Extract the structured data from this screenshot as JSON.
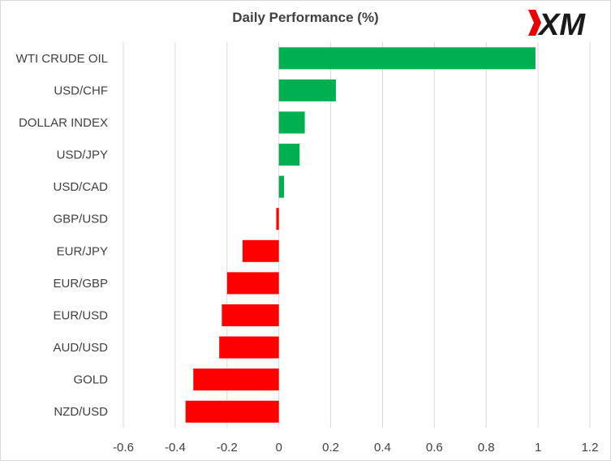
{
  "chart_data": {
    "type": "bar",
    "orientation": "horizontal",
    "title": "Daily Performance  (%)",
    "categories": [
      "WTI CRUDE OIL",
      "USD/CHF",
      "DOLLAR INDEX",
      "USD/JPY",
      "USD/CAD",
      "GBP/USD",
      "EUR/JPY",
      "EUR/GBP",
      "EUR/USD",
      "AUD/USD",
      "GOLD",
      "NZD/USD"
    ],
    "values": [
      0.99,
      0.22,
      0.1,
      0.08,
      0.02,
      -0.01,
      -0.14,
      -0.2,
      -0.22,
      -0.23,
      -0.33,
      -0.36
    ],
    "xlim": [
      -0.6,
      1.2
    ],
    "xticks": [
      "-0.6",
      "-0.4",
      "-0.2",
      "0",
      "0.2",
      "0.4",
      "0.6",
      "0.8",
      "1",
      "1.2"
    ],
    "xlabel": "",
    "ylabel": "",
    "grid": "vertical",
    "legend": "none",
    "colors": {
      "positive": "#00b050",
      "negative": "#ff0000",
      "grid": "#d9d9d9",
      "text": "#404040"
    }
  },
  "logo": {
    "text": "XM",
    "colors": {
      "mark": "#e60000",
      "letters": "#1a1a1a"
    }
  }
}
